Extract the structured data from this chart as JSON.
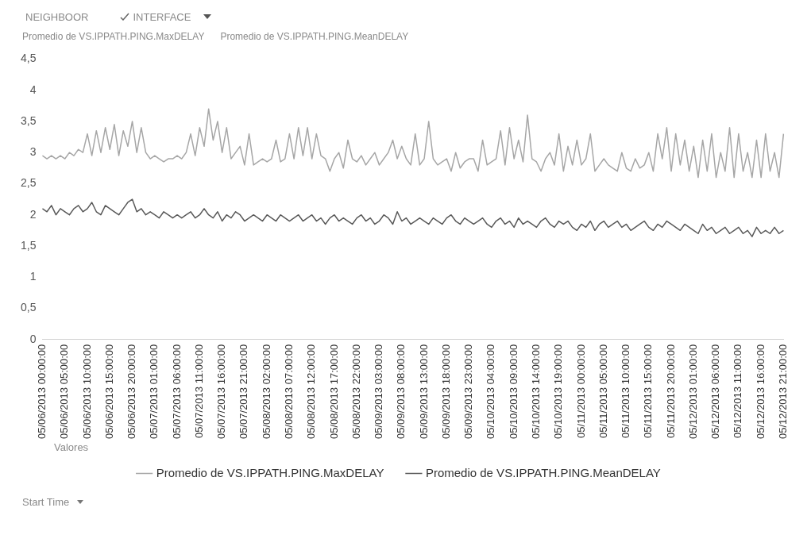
{
  "chart_data": {
    "type": "line",
    "annotations": [
      "NEIGHBOOR",
      "INTERFACE",
      "Promedio de VS.IPPATH.PING.MaxDELAY",
      "Promedio de VS.IPPATH.PING.MeanDELAY",
      "Valores",
      "Start Time"
    ],
    "categories": [
      "05/06/2013 00:00:00",
      null,
      null,
      null,
      null,
      "05/06/2013 05:00:00",
      null,
      null,
      null,
      null,
      "05/06/2013 10:00:00",
      null,
      null,
      null,
      null,
      "05/06/2013 15:00:00",
      null,
      null,
      null,
      null,
      "05/06/2013 20:00:00",
      null,
      null,
      null,
      null,
      "05/07/2013 01:00:00",
      null,
      null,
      null,
      null,
      "05/07/2013 06:00:00",
      null,
      null,
      null,
      null,
      "05/07/2013 11:00:00",
      null,
      null,
      null,
      null,
      "05/07/2013 16:00:00",
      null,
      null,
      null,
      null,
      "05/07/2013 21:00:00",
      null,
      null,
      null,
      null,
      "05/08/2013 02:00:00",
      null,
      null,
      null,
      null,
      "05/08/2013 07:00:00",
      null,
      null,
      null,
      null,
      "05/08/2013 12:00:00",
      null,
      null,
      null,
      null,
      "05/08/2013 17:00:00",
      null,
      null,
      null,
      null,
      "05/08/2013 22:00:00",
      null,
      null,
      null,
      null,
      "05/09/2013 03:00:00",
      null,
      null,
      null,
      null,
      "05/09/2013 08:00:00",
      null,
      null,
      null,
      null,
      "05/09/2013 13:00:00",
      null,
      null,
      null,
      null,
      "05/09/2013 18:00:00",
      null,
      null,
      null,
      null,
      "05/09/2013 23:00:00",
      null,
      null,
      null,
      null,
      "05/10/2013 04:00:00",
      null,
      null,
      null,
      null,
      "05/10/2013 09:00:00",
      null,
      null,
      null,
      null,
      "05/10/2013 14:00:00",
      null,
      null,
      null,
      null,
      "05/10/2013 19:00:00",
      null,
      null,
      null,
      null,
      "05/11/2013 00:00:00",
      null,
      null,
      null,
      null,
      "05/11/2013 05:00:00",
      null,
      null,
      null,
      null,
      "05/11/2013 10:00:00",
      null,
      null,
      null,
      null,
      "05/11/2013 15:00:00",
      null,
      null,
      null,
      null,
      "05/11/2013 20:00:00",
      null,
      null,
      null,
      null,
      "05/12/2013 01:00:00",
      null,
      null,
      null,
      null,
      "05/12/2013 06:00:00",
      null,
      null,
      null,
      null,
      "05/12/2013 11:00:00",
      null,
      null,
      null,
      null,
      "05/12/2013 16:00:00",
      null,
      null,
      null,
      null,
      "05/12/2013 21:00:00"
    ],
    "series": [
      {
        "name": "Promedio de VS.IPPATH.PING.MaxDELAY",
        "color": "#a6a6a6",
        "values": [
          2.95,
          2.9,
          2.95,
          2.9,
          2.95,
          2.9,
          3.0,
          2.95,
          3.05,
          3.0,
          3.3,
          2.95,
          3.35,
          3.0,
          3.4,
          3.05,
          3.45,
          2.95,
          3.35,
          3.1,
          3.5,
          3.0,
          3.4,
          3.0,
          2.9,
          2.95,
          2.9,
          2.85,
          2.9,
          2.9,
          2.95,
          2.9,
          3.0,
          3.3,
          2.95,
          3.4,
          3.1,
          3.7,
          3.2,
          3.5,
          3.0,
          3.4,
          2.9,
          3.0,
          3.1,
          2.8,
          3.3,
          2.8,
          2.85,
          2.9,
          2.85,
          2.9,
          3.2,
          2.85,
          2.9,
          3.3,
          2.9,
          3.4,
          2.95,
          3.4,
          2.9,
          3.3,
          2.95,
          2.9,
          2.7,
          2.9,
          3.0,
          2.75,
          3.2,
          2.9,
          2.85,
          2.95,
          2.8,
          2.9,
          3.0,
          2.8,
          2.9,
          3.0,
          3.2,
          2.9,
          3.1,
          2.9,
          2.8,
          3.3,
          2.8,
          2.9,
          3.5,
          2.9,
          2.8,
          2.85,
          2.9,
          2.7,
          3.0,
          2.75,
          2.85,
          2.9,
          2.9,
          2.7,
          3.2,
          2.8,
          2.85,
          2.9,
          3.35,
          2.8,
          3.4,
          2.9,
          3.2,
          2.85,
          3.6,
          2.9,
          2.85,
          2.7,
          2.9,
          3.0,
          2.8,
          3.3,
          2.7,
          3.1,
          2.8,
          3.2,
          2.8,
          2.9,
          3.3,
          2.7,
          2.8,
          2.9,
          2.8,
          2.75,
          2.7,
          3.0,
          2.75,
          2.7,
          2.9,
          2.75,
          2.8,
          3.0,
          2.7,
          3.3,
          2.9,
          3.4,
          2.7,
          3.3,
          2.8,
          3.2,
          2.7,
          3.1,
          2.6,
          3.2,
          2.7,
          3.3,
          2.6,
          3.0,
          2.7,
          3.4,
          2.6,
          3.3,
          2.7,
          3.0,
          2.6,
          3.2,
          2.6,
          3.3,
          2.7,
          3.0,
          2.6,
          3.3
        ]
      },
      {
        "name": "Promedio de VS.IPPATH.PING.MeanDELAY",
        "color": "#595959",
        "values": [
          2.1,
          2.05,
          2.15,
          2.0,
          2.1,
          2.05,
          2.0,
          2.1,
          2.15,
          2.05,
          2.1,
          2.2,
          2.05,
          2.0,
          2.15,
          2.1,
          2.05,
          2.0,
          2.1,
          2.2,
          2.25,
          2.05,
          2.1,
          2.0,
          2.05,
          2.0,
          1.95,
          2.05,
          2.0,
          1.95,
          2.0,
          1.95,
          2.0,
          2.05,
          1.95,
          2.0,
          2.1,
          2.0,
          1.95,
          2.05,
          1.9,
          2.0,
          1.95,
          2.05,
          2.0,
          1.9,
          1.95,
          2.0,
          1.95,
          1.9,
          2.0,
          1.95,
          1.9,
          2.0,
          1.95,
          1.9,
          1.95,
          2.0,
          1.9,
          1.95,
          2.0,
          1.9,
          1.95,
          1.85,
          1.95,
          2.0,
          1.9,
          1.95,
          1.9,
          1.85,
          1.95,
          2.0,
          1.9,
          1.95,
          1.85,
          1.9,
          2.0,
          1.95,
          1.85,
          2.05,
          1.9,
          1.95,
          1.85,
          1.9,
          1.95,
          1.9,
          1.85,
          1.95,
          1.9,
          1.85,
          1.95,
          2.0,
          1.9,
          1.85,
          1.95,
          1.9,
          1.85,
          1.9,
          1.95,
          1.85,
          1.8,
          1.9,
          1.95,
          1.85,
          1.9,
          1.8,
          1.95,
          1.85,
          1.9,
          1.85,
          1.8,
          1.9,
          1.95,
          1.85,
          1.8,
          1.9,
          1.85,
          1.9,
          1.8,
          1.75,
          1.85,
          1.8,
          1.9,
          1.75,
          1.85,
          1.9,
          1.8,
          1.85,
          1.9,
          1.8,
          1.85,
          1.75,
          1.8,
          1.85,
          1.9,
          1.8,
          1.75,
          1.85,
          1.8,
          1.9,
          1.85,
          1.8,
          1.75,
          1.85,
          1.8,
          1.75,
          1.7,
          1.85,
          1.75,
          1.8,
          1.7,
          1.75,
          1.8,
          1.7,
          1.75,
          1.8,
          1.7,
          1.75,
          1.65,
          1.8,
          1.7,
          1.75,
          1.7,
          1.8,
          1.7,
          1.75
        ]
      }
    ],
    "ylim": [
      0,
      4.5
    ],
    "yticks": [
      0,
      {
        "value": 0.5,
        "label": "0,5"
      },
      1,
      {
        "value": 1.5,
        "label": "1,5"
      },
      2,
      {
        "value": 2.5,
        "label": "2,5"
      },
      3,
      {
        "value": 3.5,
        "label": "3,5"
      },
      4,
      {
        "value": 4.5,
        "label": "4,5"
      }
    ],
    "legend": "bottom",
    "grid": false,
    "marker": "none",
    "line_style": "solid"
  }
}
